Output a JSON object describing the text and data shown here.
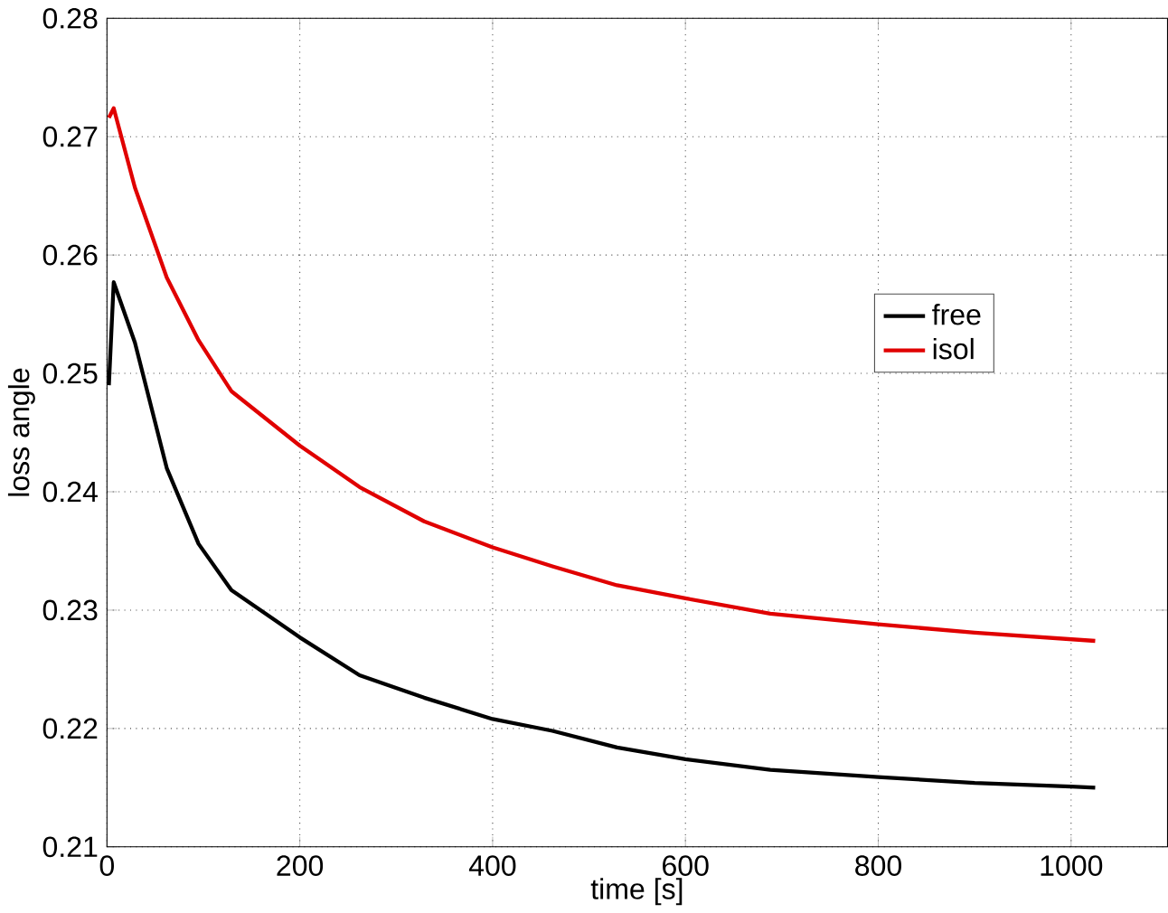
{
  "chart_data": {
    "type": "line",
    "xlabel": "time [s]",
    "ylabel": "loss angle",
    "xlim": [
      0,
      1100
    ],
    "ylim": [
      0.21,
      0.28
    ],
    "xticks": [
      0,
      200,
      400,
      600,
      800,
      1000
    ],
    "yticks": [
      0.21,
      0.22,
      0.23,
      0.24,
      0.25,
      0.26,
      0.27,
      0.28
    ],
    "grid": true,
    "legend": "right",
    "marker": "none",
    "line_style": "solid",
    "series": [
      {
        "name": "free",
        "color": "#000000",
        "x": [
          2,
          7,
          29,
          62,
          95,
          129,
          200,
          262,
          329,
          400,
          462,
          529,
          600,
          688,
          800,
          900,
          1000,
          1025
        ],
        "values": [
          0.249,
          0.2577,
          0.2526,
          0.242,
          0.2356,
          0.2317,
          0.2277,
          0.2245,
          0.2226,
          0.2208,
          0.2198,
          0.2184,
          0.2174,
          0.2165,
          0.2159,
          0.2154,
          0.2151,
          0.215
        ]
      },
      {
        "name": "isol",
        "color": "#e00000",
        "x": [
          2,
          7,
          29,
          62,
          95,
          129,
          200,
          262,
          329,
          400,
          462,
          529,
          600,
          688,
          800,
          900,
          1025
        ],
        "values": [
          0.2716,
          0.2724,
          0.2657,
          0.2581,
          0.2528,
          0.2485,
          0.2439,
          0.2404,
          0.2375,
          0.2353,
          0.2337,
          0.2321,
          0.231,
          0.2297,
          0.2288,
          0.2281,
          0.2274
        ]
      }
    ]
  }
}
